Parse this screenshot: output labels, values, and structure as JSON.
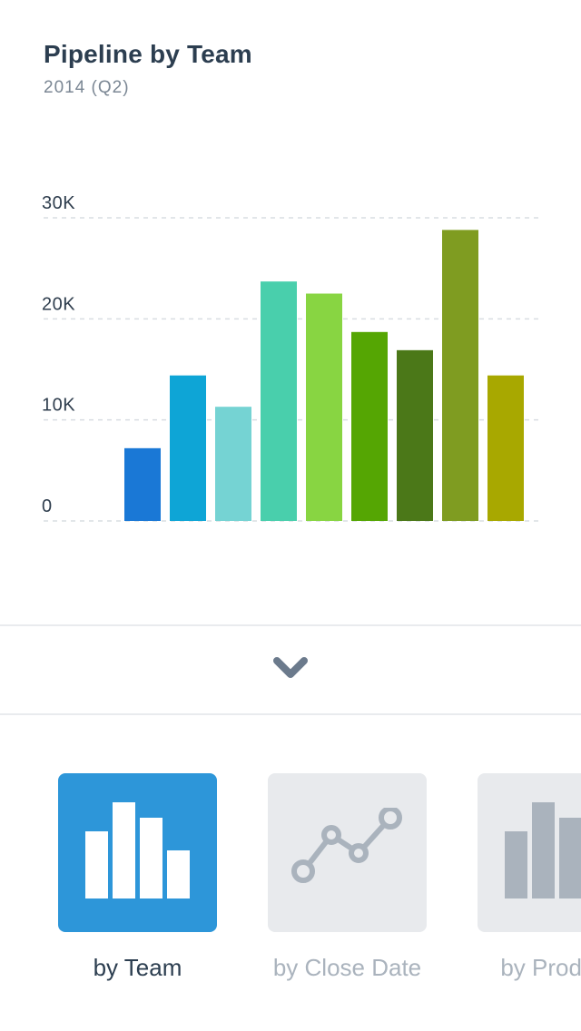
{
  "header": {
    "title": "Pipeline by Team",
    "subtitle": "2014 (Q2)"
  },
  "chart_data": {
    "type": "bar",
    "title": "Pipeline by Team",
    "subtitle": "2014 (Q2)",
    "categories": [
      "",
      "",
      "",
      "",
      "",
      "",
      "",
      "",
      ""
    ],
    "values": [
      7200,
      14400,
      11300,
      23700,
      22500,
      18700,
      16900,
      28800,
      14400
    ],
    "colors": [
      "#1a78d6",
      "#0ea5d6",
      "#75d3d3",
      "#49cfac",
      "#88d542",
      "#55a603",
      "#4b7818",
      "#7f9c21",
      "#a8a800"
    ],
    "ylim": [
      0,
      30000
    ],
    "yticks": [
      0,
      10000,
      20000,
      30000
    ],
    "ytick_labels": [
      "0",
      "10K",
      "20K",
      "30K"
    ],
    "grid": true,
    "xlabel": "",
    "ylabel": ""
  },
  "expand": {
    "icon": "chevron-down-icon"
  },
  "tiles": [
    {
      "label": "by Team",
      "icon": "bar-chart-icon",
      "active": true
    },
    {
      "label": "by Close Date",
      "icon": "line-chart-icon",
      "active": false
    },
    {
      "label": "by Product",
      "icon": "bar-chart-icon",
      "active": false
    }
  ],
  "colors": {
    "accent": "#2d96d9",
    "tile_inactive": "#e8eaed",
    "icon_inactive": "#aab3bd",
    "title": "#2c3e50",
    "chevron": "#6b7a8c"
  }
}
